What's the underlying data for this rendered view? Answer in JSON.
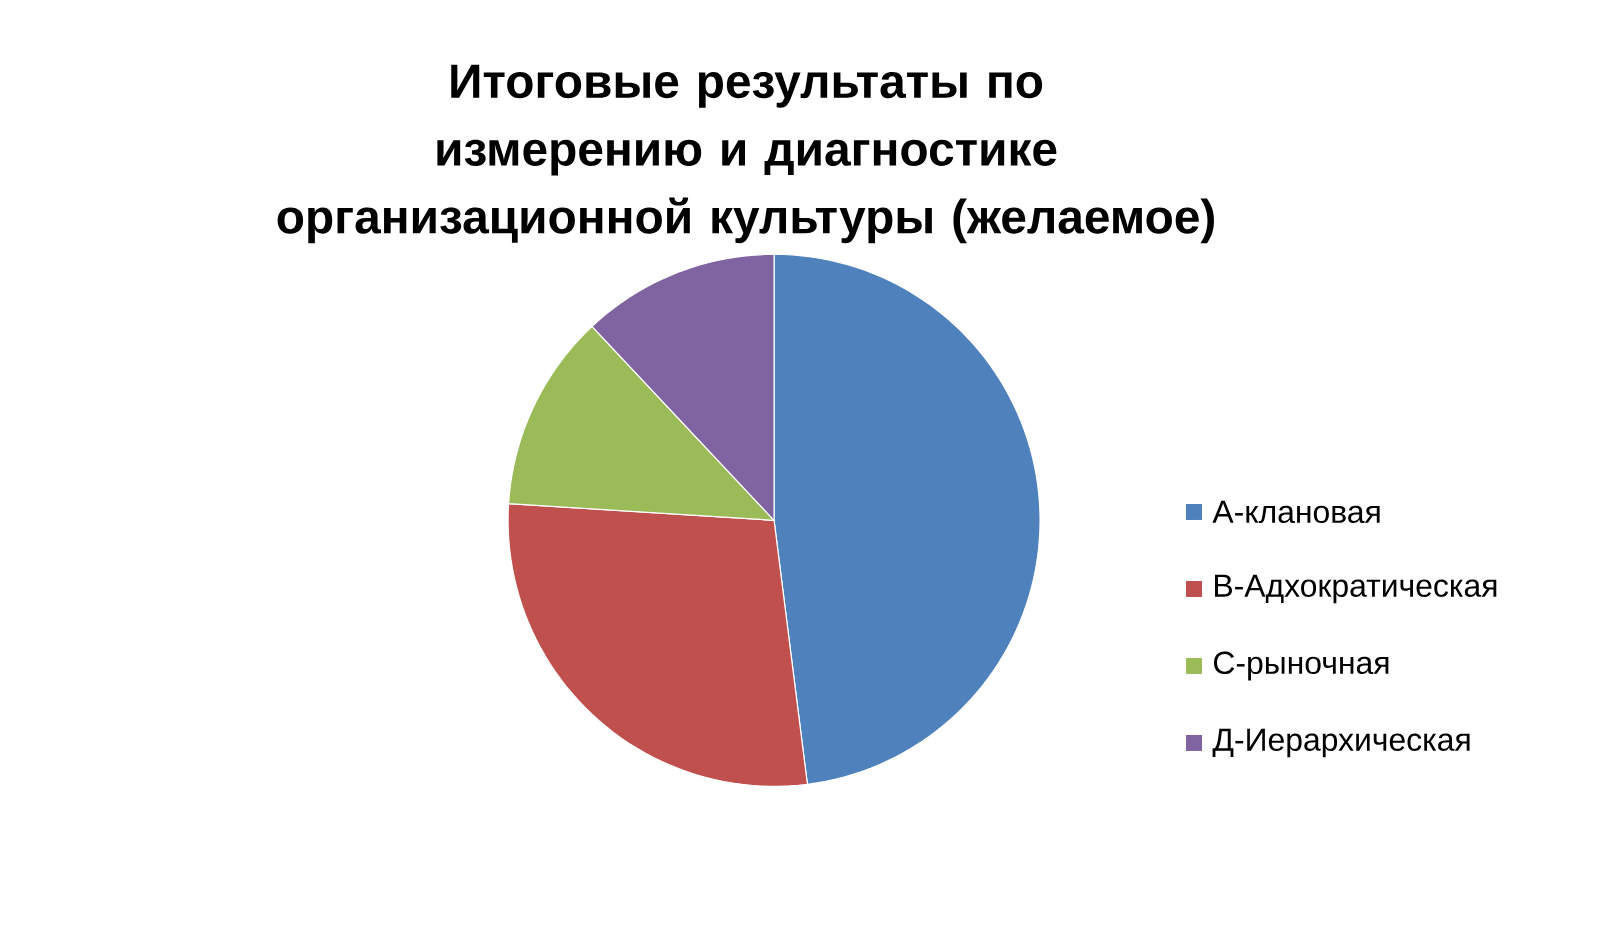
{
  "chart_data": {
    "type": "pie",
    "title": "Итоговые результаты по измерению и диагностике организационной культуры (желаемое)",
    "categories": [
      "А-клановая",
      "В-Адхократическая",
      "С-рыночная",
      "Д-Иерархическая"
    ],
    "values": [
      48,
      28,
      12,
      12
    ],
    "colors": [
      "#4f81bd",
      "#c0504d",
      "#9bbb59",
      "#8064a2"
    ],
    "legend": "right"
  }
}
